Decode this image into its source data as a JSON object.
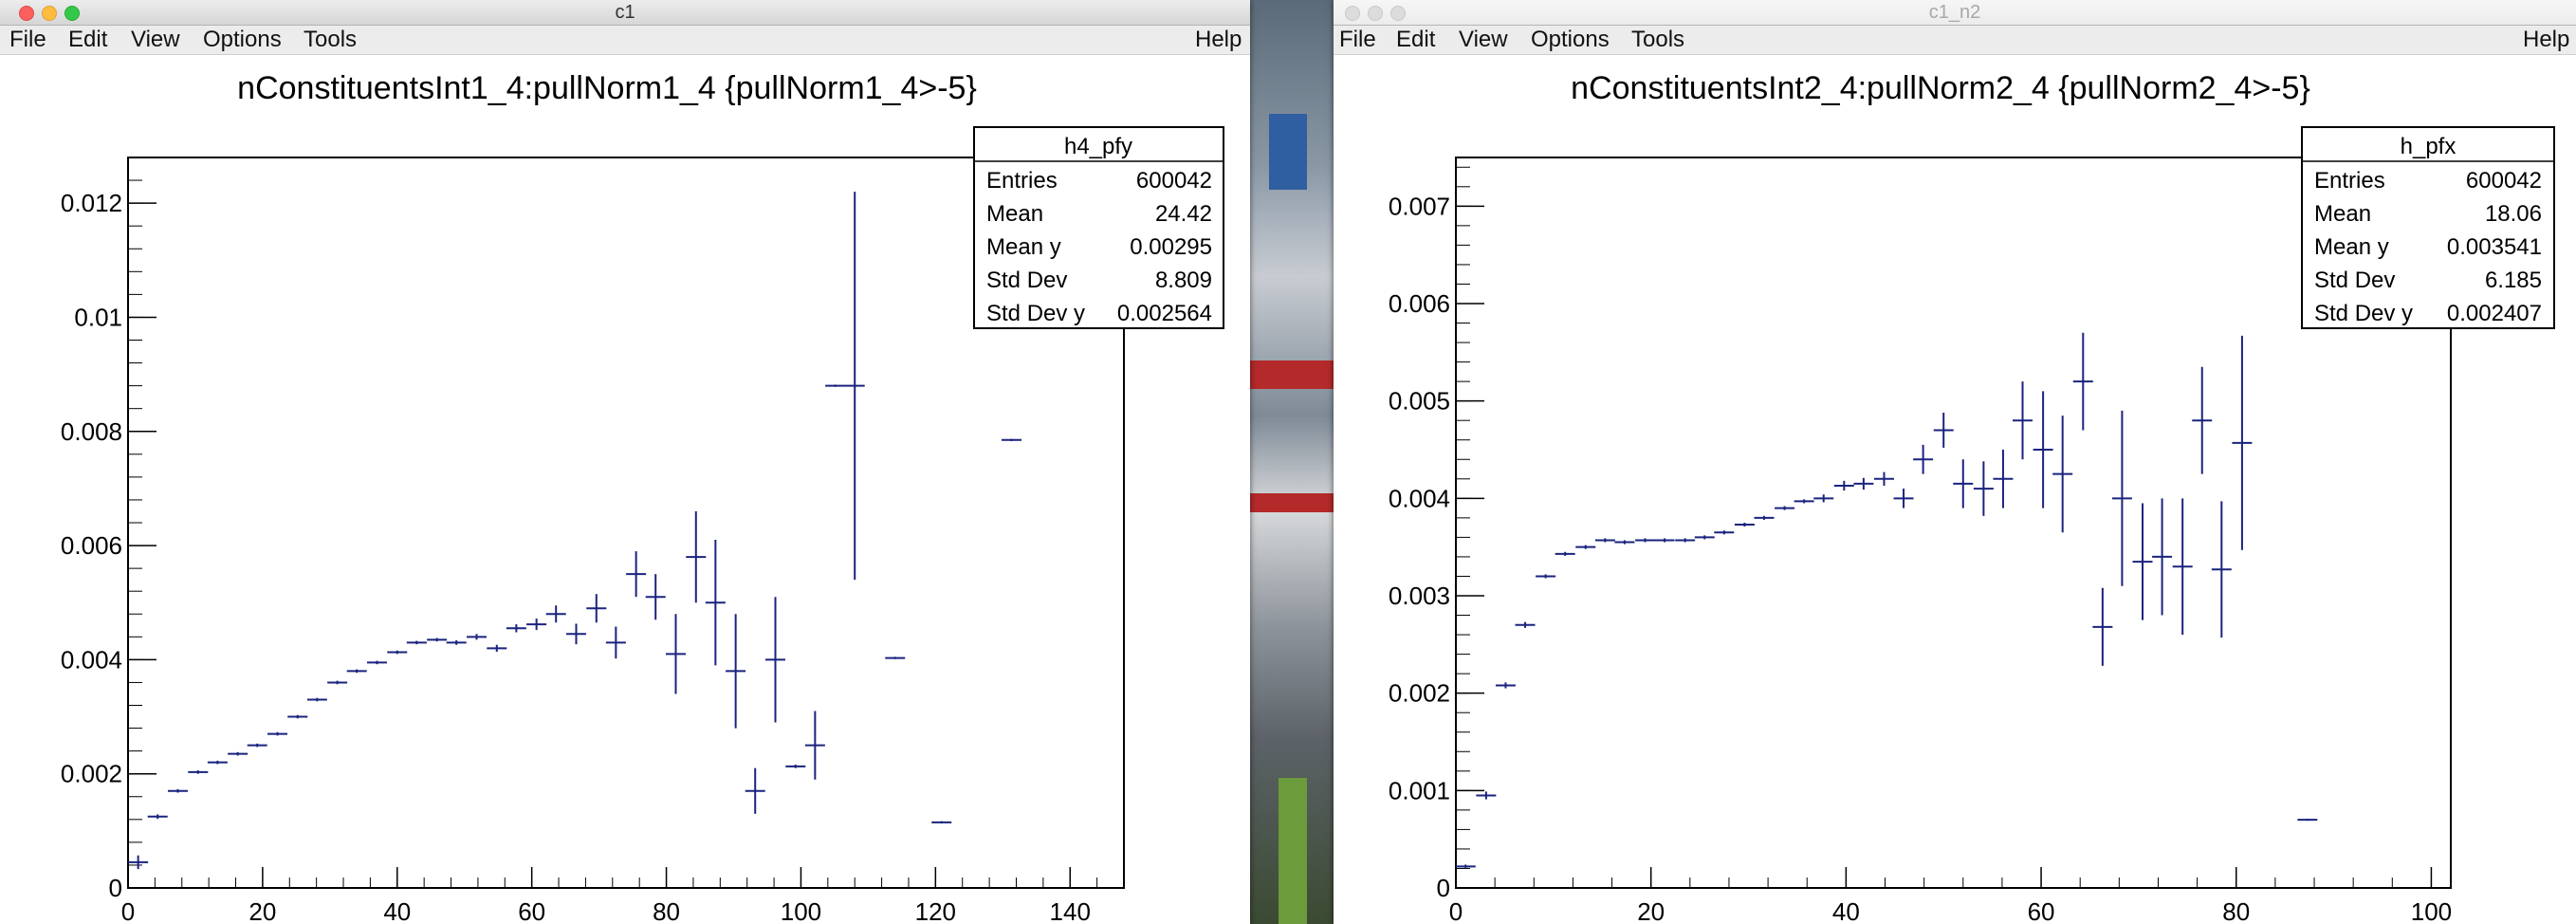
{
  "desktop": {
    "background": "#3a4656"
  },
  "windows": [
    {
      "title": "c1",
      "active": true,
      "menu": [
        "File",
        "Edit",
        "View",
        "Options",
        "Tools"
      ],
      "help": "Help",
      "plot_title": "nConstituentsInt1_4:pullNorm1_4 {pullNorm1_4>-5}",
      "stats": {
        "name": "h4_pfy",
        "rows": [
          {
            "label": "Entries",
            "value": "600042"
          },
          {
            "label": "Mean",
            "value": "24.42"
          },
          {
            "label": "Mean y",
            "value": "0.00295"
          },
          {
            "label": "Std Dev",
            "value": "8.809"
          },
          {
            "label": "Std Dev y",
            "value": "0.002564"
          }
        ]
      }
    },
    {
      "title": "c1_n2",
      "active": false,
      "menu": [
        "File",
        "Edit",
        "View",
        "Options",
        "Tools"
      ],
      "help": "Help",
      "plot_title": "nConstituentsInt2_4:pullNorm2_4 {pullNorm2_4>-5}",
      "stats": {
        "name": "h_pfx",
        "rows": [
          {
            "label": "Entries",
            "value": "600042"
          },
          {
            "label": "Mean",
            "value": "18.06"
          },
          {
            "label": "Mean y",
            "value": "0.003541"
          },
          {
            "label": "Std Dev",
            "value": "6.185"
          },
          {
            "label": "Std Dev y",
            "value": "0.002407"
          }
        ]
      }
    }
  ],
  "chart_data": [
    {
      "type": "scatter",
      "title": "nConstituentsInt1_4:pullNorm1_4 {pullNorm1_4>-5}",
      "xlim": [
        0,
        148
      ],
      "ylim": [
        0,
        0.0128
      ],
      "xticks": [
        0,
        20,
        40,
        60,
        80,
        100,
        120,
        140
      ],
      "xtick_labels": [
        "0",
        "20",
        "40",
        "60",
        "80",
        "100",
        "120",
        "140"
      ],
      "yticks": [
        0,
        0.002,
        0.004,
        0.006,
        0.008,
        0.01,
        0.012
      ],
      "ytick_labels": [
        "0",
        "0.002",
        "0.004",
        "0.006",
        "0.008",
        "0.01",
        "0.012"
      ],
      "bin_width": 2.96,
      "color": "#1a237e",
      "points": [
        {
          "x": 1.5,
          "y": 0.00045,
          "err": 0.00012
        },
        {
          "x": 4.4,
          "y": 0.00125,
          "err": 4e-05
        },
        {
          "x": 7.4,
          "y": 0.0017,
          "err": 3e-05
        },
        {
          "x": 10.4,
          "y": 0.00203,
          "err": 3e-05
        },
        {
          "x": 13.3,
          "y": 0.0022,
          "err": 3e-05
        },
        {
          "x": 16.3,
          "y": 0.00235,
          "err": 3e-05
        },
        {
          "x": 19.2,
          "y": 0.0025,
          "err": 3e-05
        },
        {
          "x": 22.2,
          "y": 0.0027,
          "err": 3e-05
        },
        {
          "x": 25.2,
          "y": 0.003,
          "err": 3e-05
        },
        {
          "x": 28.1,
          "y": 0.0033,
          "err": 3e-05
        },
        {
          "x": 31.1,
          "y": 0.0036,
          "err": 3e-05
        },
        {
          "x": 34.0,
          "y": 0.0038,
          "err": 3e-05
        },
        {
          "x": 37.0,
          "y": 0.00395,
          "err": 3e-05
        },
        {
          "x": 40.0,
          "y": 0.00413,
          "err": 3e-05
        },
        {
          "x": 42.9,
          "y": 0.0043,
          "err": 3e-05
        },
        {
          "x": 45.9,
          "y": 0.00435,
          "err": 3e-05
        },
        {
          "x": 48.8,
          "y": 0.0043,
          "err": 4e-05
        },
        {
          "x": 51.8,
          "y": 0.0044,
          "err": 5e-05
        },
        {
          "x": 54.8,
          "y": 0.0042,
          "err": 6e-05
        },
        {
          "x": 57.7,
          "y": 0.00455,
          "err": 7e-05
        },
        {
          "x": 60.7,
          "y": 0.00462,
          "err": 0.0001
        },
        {
          "x": 63.6,
          "y": 0.0048,
          "err": 0.00015
        },
        {
          "x": 66.6,
          "y": 0.00445,
          "err": 0.00018
        },
        {
          "x": 69.6,
          "y": 0.0049,
          "err": 0.00025
        },
        {
          "x": 72.5,
          "y": 0.0043,
          "err": 0.00028
        },
        {
          "x": 75.5,
          "y": 0.0055,
          "err": 0.0004
        },
        {
          "x": 78.4,
          "y": 0.0051,
          "err": 0.0004
        },
        {
          "x": 81.4,
          "y": 0.0041,
          "err": 0.0007
        },
        {
          "x": 84.4,
          "y": 0.0058,
          "err": 0.0008
        },
        {
          "x": 87.3,
          "y": 0.005,
          "err": 0.0011
        },
        {
          "x": 90.3,
          "y": 0.0038,
          "err": 0.001
        },
        {
          "x": 93.2,
          "y": 0.0017,
          "err": 0.0004
        },
        {
          "x": 96.2,
          "y": 0.004,
          "err": 0.0011
        },
        {
          "x": 99.2,
          "y": 0.00213,
          "err": 3e-05
        },
        {
          "x": 102.1,
          "y": 0.0025,
          "err": 0.0006
        },
        {
          "x": 105.1,
          "y": 0.0088,
          "err": 2e-05
        },
        {
          "x": 108.0,
          "y": 0.0088,
          "err": 0.0034
        },
        {
          "x": 114.0,
          "y": 0.00403,
          "err": 2e-05
        },
        {
          "x": 120.9,
          "y": 0.00115,
          "err": 2e-05
        },
        {
          "x": 131.3,
          "y": 0.00785,
          "err": 2e-05
        }
      ]
    },
    {
      "type": "scatter",
      "title": "nConstituentsInt2_4:pullNorm2_4 {pullNorm2_4>-5}",
      "xlim": [
        0,
        102
      ],
      "ylim": [
        0,
        0.0075
      ],
      "xticks": [
        0,
        20,
        40,
        60,
        80,
        100
      ],
      "xtick_labels": [
        "0",
        "20",
        "40",
        "60",
        "80",
        "100"
      ],
      "yticks": [
        0,
        0.001,
        0.002,
        0.003,
        0.004,
        0.005,
        0.006,
        0.007
      ],
      "ytick_labels": [
        "0",
        "0.001",
        "0.002",
        "0.003",
        "0.004",
        "0.005",
        "0.006",
        "0.007"
      ],
      "bin_width": 2.04,
      "color": "#1a237e",
      "points": [
        {
          "x": 1.0,
          "y": 0.00022,
          "err": 2e-05
        },
        {
          "x": 3.1,
          "y": 0.00095,
          "err": 4e-05
        },
        {
          "x": 5.1,
          "y": 0.00208,
          "err": 3e-05
        },
        {
          "x": 7.1,
          "y": 0.0027,
          "err": 3e-05
        },
        {
          "x": 9.2,
          "y": 0.0032,
          "err": 2e-05
        },
        {
          "x": 11.2,
          "y": 0.00343,
          "err": 2e-05
        },
        {
          "x": 13.3,
          "y": 0.0035,
          "err": 2e-05
        },
        {
          "x": 15.3,
          "y": 0.00357,
          "err": 2e-05
        },
        {
          "x": 17.3,
          "y": 0.00355,
          "err": 2e-05
        },
        {
          "x": 19.4,
          "y": 0.00357,
          "err": 2e-05
        },
        {
          "x": 21.4,
          "y": 0.00357,
          "err": 2e-05
        },
        {
          "x": 23.5,
          "y": 0.00357,
          "err": 2e-05
        },
        {
          "x": 25.5,
          "y": 0.0036,
          "err": 2e-05
        },
        {
          "x": 27.5,
          "y": 0.00365,
          "err": 2e-05
        },
        {
          "x": 29.6,
          "y": 0.00373,
          "err": 2e-05
        },
        {
          "x": 31.6,
          "y": 0.0038,
          "err": 2e-05
        },
        {
          "x": 33.7,
          "y": 0.0039,
          "err": 2e-05
        },
        {
          "x": 35.7,
          "y": 0.00397,
          "err": 2e-05
        },
        {
          "x": 37.7,
          "y": 0.004,
          "err": 4e-05
        },
        {
          "x": 39.8,
          "y": 0.00413,
          "err": 5e-05
        },
        {
          "x": 41.8,
          "y": 0.00415,
          "err": 6e-05
        },
        {
          "x": 43.9,
          "y": 0.0042,
          "err": 7e-05
        },
        {
          "x": 45.9,
          "y": 0.004,
          "err": 0.0001
        },
        {
          "x": 47.9,
          "y": 0.0044,
          "err": 0.00015
        },
        {
          "x": 50.0,
          "y": 0.0047,
          "err": 0.00018
        },
        {
          "x": 52.0,
          "y": 0.00415,
          "err": 0.00025
        },
        {
          "x": 54.1,
          "y": 0.0041,
          "err": 0.00028
        },
        {
          "x": 56.1,
          "y": 0.0042,
          "err": 0.0003
        },
        {
          "x": 58.1,
          "y": 0.0048,
          "err": 0.0004
        },
        {
          "x": 60.2,
          "y": 0.0045,
          "err": 0.0006
        },
        {
          "x": 62.2,
          "y": 0.00425,
          "err": 0.0006
        },
        {
          "x": 64.3,
          "y": 0.0052,
          "err": 0.0005
        },
        {
          "x": 66.3,
          "y": 0.00268,
          "err": 0.0004
        },
        {
          "x": 68.3,
          "y": 0.004,
          "err": 0.0009
        },
        {
          "x": 70.4,
          "y": 0.00335,
          "err": 0.0006
        },
        {
          "x": 72.4,
          "y": 0.0034,
          "err": 0.0006
        },
        {
          "x": 74.5,
          "y": 0.0033,
          "err": 0.0007
        },
        {
          "x": 76.5,
          "y": 0.0048,
          "err": 0.00055
        },
        {
          "x": 78.5,
          "y": 0.00327,
          "err": 0.0007
        },
        {
          "x": 80.6,
          "y": 0.00457,
          "err": 0.0011
        },
        {
          "x": 87.3,
          "y": 0.0007,
          "err": 1e-05
        }
      ]
    }
  ]
}
